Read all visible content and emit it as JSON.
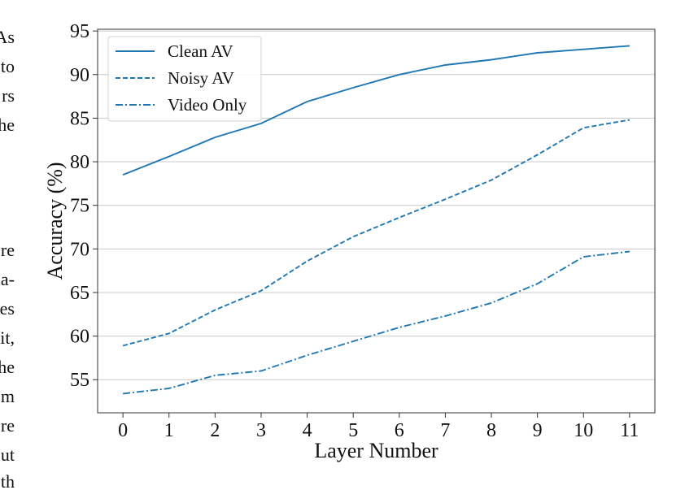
{
  "margin_text": [
    "As",
    "to",
    "rs",
    "he",
    "re",
    "a-",
    "es",
    "it,",
    "he",
    "m",
    "re",
    "ut",
    "th"
  ],
  "chart_data": {
    "type": "line",
    "title": "",
    "xlabel": "Layer Number",
    "ylabel": "Accuracy (%)",
    "x": [
      0,
      1,
      2,
      3,
      4,
      5,
      6,
      7,
      8,
      9,
      10,
      11
    ],
    "xlim": [
      -0.55,
      11.55
    ],
    "ylim": [
      51.2,
      95.2
    ],
    "yticks": [
      55,
      60,
      65,
      70,
      75,
      80,
      85,
      90,
      95
    ],
    "grid": "horizontal",
    "legend": "top-left",
    "series": [
      {
        "name": "Clean AV",
        "style": "solid",
        "color": "#1f77b4",
        "values": [
          78.5,
          80.6,
          82.8,
          84.4,
          86.9,
          88.5,
          90.0,
          91.1,
          91.7,
          92.5,
          92.9,
          93.3
        ]
      },
      {
        "name": "Noisy AV",
        "style": "dashed",
        "color": "#1f77b4",
        "values": [
          58.9,
          60.3,
          63.0,
          65.2,
          68.6,
          71.4,
          73.6,
          75.7,
          77.9,
          80.8,
          83.9,
          84.8
        ]
      },
      {
        "name": "Video Only",
        "style": "dashdot",
        "color": "#1f77b4",
        "values": [
          53.4,
          54.0,
          55.5,
          56.0,
          57.8,
          59.4,
          61.0,
          62.3,
          63.8,
          66.0,
          69.1,
          69.7
        ]
      }
    ]
  }
}
